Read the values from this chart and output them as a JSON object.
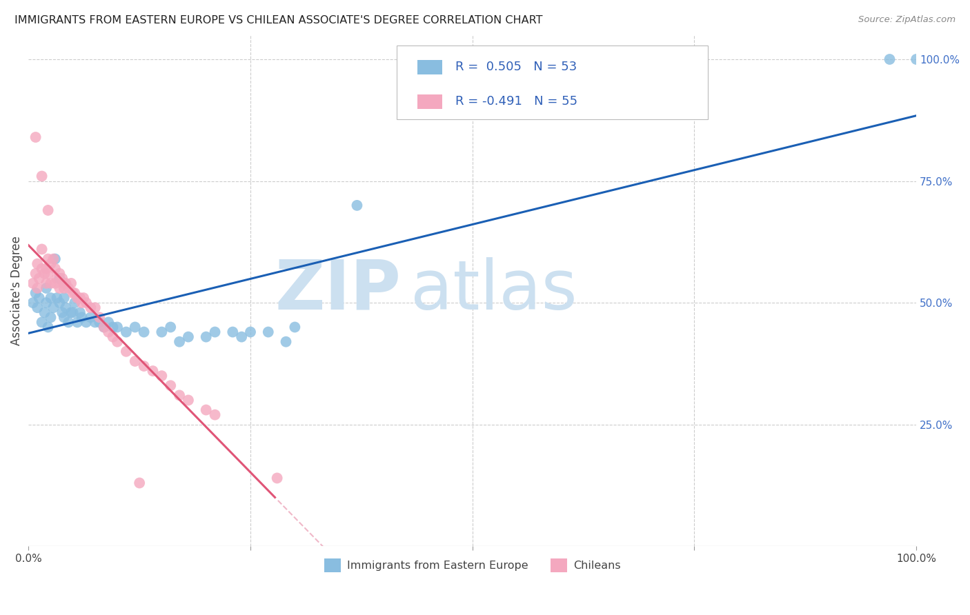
{
  "title": "IMMIGRANTS FROM EASTERN EUROPE VS CHILEAN ASSOCIATE'S DEGREE CORRELATION CHART",
  "source": "Source: ZipAtlas.com",
  "ylabel": "Associate's Degree",
  "watermark_zip": "ZIP",
  "watermark_atlas": "atlas",
  "legend_label_blue": "Immigrants from Eastern Europe",
  "legend_label_pink": "Chileans",
  "blue_color": "#89bde0",
  "pink_color": "#f4a8bf",
  "blue_line_color": "#1a5fb4",
  "pink_line_color": "#e05577",
  "pink_dash_color": "#f0b8c8",
  "background_color": "#ffffff",
  "grid_color": "#cccccc",
  "blue_r": "0.505",
  "blue_n": "53",
  "pink_r": "-0.491",
  "pink_n": "55",
  "blue_x": [
    0.005,
    0.008,
    0.01,
    0.012,
    0.015,
    0.018,
    0.02,
    0.02,
    0.022,
    0.025,
    0.025,
    0.028,
    0.03,
    0.032,
    0.035,
    0.035,
    0.038,
    0.04,
    0.04,
    0.042,
    0.045,
    0.048,
    0.05,
    0.052,
    0.055,
    0.058,
    0.06,
    0.065,
    0.07,
    0.075,
    0.08,
    0.085,
    0.09,
    0.095,
    0.1,
    0.11,
    0.12,
    0.13,
    0.15,
    0.16,
    0.17,
    0.18,
    0.2,
    0.21,
    0.23,
    0.24,
    0.25,
    0.27,
    0.29,
    0.3,
    0.37,
    0.97,
    1.0
  ],
  "blue_y": [
    0.5,
    0.52,
    0.49,
    0.51,
    0.46,
    0.48,
    0.5,
    0.53,
    0.45,
    0.47,
    0.51,
    0.49,
    0.59,
    0.51,
    0.5,
    0.55,
    0.48,
    0.47,
    0.51,
    0.49,
    0.46,
    0.48,
    0.48,
    0.5,
    0.46,
    0.48,
    0.47,
    0.46,
    0.47,
    0.46,
    0.46,
    0.45,
    0.46,
    0.45,
    0.45,
    0.44,
    0.45,
    0.44,
    0.44,
    0.45,
    0.42,
    0.43,
    0.43,
    0.44,
    0.44,
    0.43,
    0.44,
    0.44,
    0.42,
    0.45,
    0.7,
    1.0,
    1.0
  ],
  "pink_x": [
    0.005,
    0.008,
    0.01,
    0.01,
    0.012,
    0.015,
    0.015,
    0.018,
    0.02,
    0.02,
    0.022,
    0.022,
    0.025,
    0.025,
    0.028,
    0.03,
    0.03,
    0.032,
    0.035,
    0.035,
    0.038,
    0.04,
    0.04,
    0.042,
    0.045,
    0.048,
    0.05,
    0.052,
    0.055,
    0.058,
    0.06,
    0.062,
    0.065,
    0.07,
    0.075,
    0.08,
    0.085,
    0.09,
    0.095,
    0.1,
    0.11,
    0.12,
    0.13,
    0.14,
    0.15,
    0.16,
    0.17,
    0.18,
    0.2,
    0.21,
    0.008,
    0.015,
    0.022,
    0.125,
    0.28
  ],
  "pink_y": [
    0.54,
    0.56,
    0.53,
    0.58,
    0.55,
    0.57,
    0.61,
    0.56,
    0.54,
    0.57,
    0.56,
    0.59,
    0.54,
    0.58,
    0.59,
    0.54,
    0.57,
    0.55,
    0.53,
    0.56,
    0.55,
    0.53,
    0.54,
    0.54,
    0.53,
    0.54,
    0.52,
    0.52,
    0.51,
    0.51,
    0.5,
    0.51,
    0.5,
    0.49,
    0.49,
    0.47,
    0.45,
    0.44,
    0.43,
    0.42,
    0.4,
    0.38,
    0.37,
    0.36,
    0.35,
    0.33,
    0.31,
    0.3,
    0.28,
    0.27,
    0.84,
    0.76,
    0.69,
    0.13,
    0.14
  ]
}
